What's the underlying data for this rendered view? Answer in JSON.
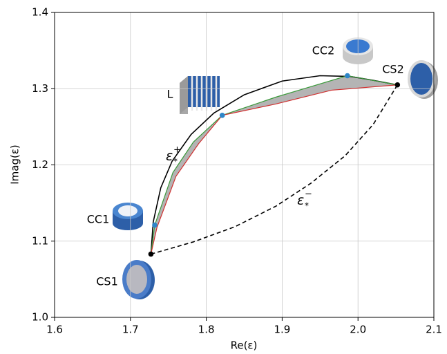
{
  "chart_data": {
    "type": "line",
    "xlabel": "Re(ε)",
    "ylabel": "Imag(ε)",
    "xlim": [
      1.6,
      2.1
    ],
    "ylim": [
      1.0,
      1.4
    ],
    "xticks": [
      1.6,
      1.7,
      1.8,
      1.9,
      {
        "value": 2,
        "label": "2.0"
      },
      2.1
    ],
    "yticks": [
      {
        "value": 1,
        "label": "1.0"
      },
      1.1,
      1.2,
      1.3,
      1.4
    ],
    "grid": true,
    "series": [
      {
        "color": "#000000",
        "dash": false,
        "x": [
          1.727,
          1.73,
          1.74,
          1.755,
          1.78,
          1.81,
          1.85,
          1.9,
          1.95,
          1.99,
          2.02,
          2.052
        ],
        "values": [
          1.083,
          1.125,
          1.17,
          1.205,
          1.24,
          1.268,
          1.292,
          1.31,
          1.317,
          1.316,
          1.311,
          1.305
        ]
      },
      {
        "color": "#000000",
        "dash": true,
        "x": [
          1.727,
          1.783,
          1.838,
          1.892,
          1.938,
          1.983,
          2.02,
          2.052
        ],
        "values": [
          1.083,
          1.099,
          1.119,
          1.146,
          1.176,
          1.212,
          1.253,
          1.305
        ]
      },
      {
        "color": "#3a9a3a",
        "dash": false,
        "x": [
          1.727,
          1.732,
          1.756,
          1.783,
          1.821,
          1.892,
          1.986,
          2.052
        ],
        "values": [
          1.083,
          1.121,
          1.19,
          1.23,
          1.265,
          1.289,
          1.317,
          1.305
        ]
      },
      {
        "color": "#d03030",
        "dash": false,
        "x": [
          1.727,
          1.735,
          1.76,
          1.79,
          1.821,
          1.892,
          1.965,
          2.052
        ],
        "values": [
          1.083,
          1.118,
          1.185,
          1.228,
          1.265,
          1.28,
          1.298,
          1.305
        ]
      }
    ],
    "shade_color": "#b4b4b4",
    "points": [
      {
        "label": "CS1",
        "x": 1.727,
        "y": 1.083,
        "color": "#000000"
      },
      {
        "label": "CC1",
        "x": 1.732,
        "y": 1.121,
        "color": "#2f86c8"
      },
      {
        "label": "L",
        "x": 1.821,
        "y": 1.265,
        "color": "#2f86c8"
      },
      {
        "label": "CC2",
        "x": 1.986,
        "y": 1.317,
        "color": "#2f86c8"
      },
      {
        "label": "CS2",
        "x": 2.052,
        "y": 1.305,
        "color": "#000000"
      }
    ],
    "annotations": [
      {
        "text": "ε",
        "sub": "*",
        "sup": "+"
      },
      {
        "text": "ε",
        "sub": "*",
        "sup": "−"
      }
    ]
  }
}
